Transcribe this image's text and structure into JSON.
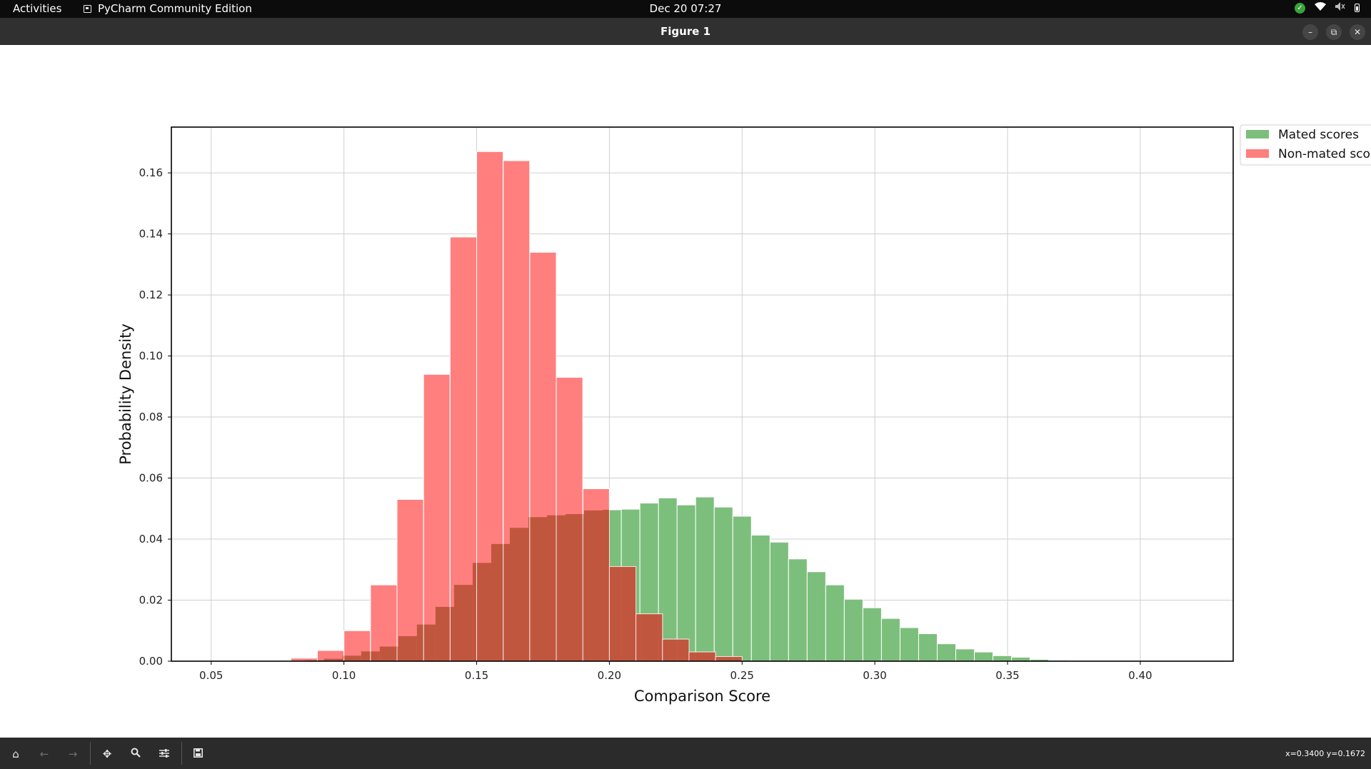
{
  "topbar": {
    "activities": "Activities",
    "app_name": "PyCharm Community Edition",
    "clock": "Dec 20  07:27",
    "icons": [
      "update-check-icon",
      "wifi-icon",
      "volume-muted-icon",
      "battery-icon"
    ]
  },
  "window": {
    "title": "Figure 1",
    "buttons": [
      "minimize-icon",
      "maximize-icon",
      "close-icon"
    ]
  },
  "toolbar": {
    "icons": [
      "home-icon",
      "back-icon",
      "forward-icon",
      "pan-icon",
      "zoom-icon",
      "configure-icon",
      "save-icon"
    ],
    "coords": "x=0.3400 y=0.1672"
  },
  "colors": {
    "mated": "#7cbf7c",
    "non_mated": "#ff7f7f",
    "overlap": "#c0563e",
    "bar_edge": "#ffffff"
  },
  "chart_data": {
    "type": "bar",
    "title": "",
    "xlabel": "Comparison Score",
    "ylabel": "Probability Density",
    "xlim": [
      0.035,
      0.435
    ],
    "ylim": [
      0.0,
      0.175
    ],
    "xticks": [
      0.05,
      0.1,
      0.15,
      0.2,
      0.25,
      0.3,
      0.35,
      0.4
    ],
    "xtick_labels": [
      "0.05",
      "0.10",
      "0.15",
      "0.20",
      "0.25",
      "0.30",
      "0.35",
      "0.40"
    ],
    "yticks": [
      0.0,
      0.02,
      0.04,
      0.06,
      0.08,
      0.1,
      0.12,
      0.14,
      0.16
    ],
    "ytick_labels": [
      "0.00",
      "0.02",
      "0.04",
      "0.06",
      "0.08",
      "0.10",
      "0.12",
      "0.14",
      "0.16"
    ],
    "grid": true,
    "legend": {
      "placement": "outside-top-right",
      "entries": [
        "Mated scores",
        "Non-mated scor"
      ]
    },
    "series": [
      {
        "name": "Mated scores",
        "bin_width": 0.007,
        "bins": [
          [
            0.089,
            0.0003
          ],
          [
            0.096,
            0.0008
          ],
          [
            0.103,
            0.0018
          ],
          [
            0.11,
            0.0032
          ],
          [
            0.117,
            0.0048
          ],
          [
            0.124,
            0.0082
          ],
          [
            0.131,
            0.012
          ],
          [
            0.138,
            0.0178
          ],
          [
            0.145,
            0.025
          ],
          [
            0.152,
            0.0322
          ],
          [
            0.159,
            0.0384
          ],
          [
            0.166,
            0.0437
          ],
          [
            0.173,
            0.0472
          ],
          [
            0.18,
            0.0478
          ],
          [
            0.187,
            0.0482
          ],
          [
            0.194,
            0.0494
          ],
          [
            0.201,
            0.0496
          ],
          [
            0.208,
            0.0498
          ],
          [
            0.215,
            0.0518
          ],
          [
            0.222,
            0.0535
          ],
          [
            0.229,
            0.0512
          ],
          [
            0.236,
            0.0538
          ],
          [
            0.243,
            0.0505
          ],
          [
            0.25,
            0.0475
          ],
          [
            0.257,
            0.0413
          ],
          [
            0.264,
            0.039
          ],
          [
            0.271,
            0.0335
          ],
          [
            0.278,
            0.0293
          ],
          [
            0.285,
            0.025
          ],
          [
            0.292,
            0.0203
          ],
          [
            0.299,
            0.0175
          ],
          [
            0.306,
            0.014
          ],
          [
            0.313,
            0.011
          ],
          [
            0.32,
            0.009
          ],
          [
            0.327,
            0.0057
          ],
          [
            0.334,
            0.004
          ],
          [
            0.341,
            0.003
          ],
          [
            0.348,
            0.0018
          ],
          [
            0.355,
            0.0013
          ],
          [
            0.362,
            0.0006
          ],
          [
            0.369,
            0.0003
          ],
          [
            0.376,
            0.0001
          ]
        ]
      },
      {
        "name": "Non-mated scor",
        "bin_width": 0.01,
        "bins": [
          [
            0.085,
            0.001
          ],
          [
            0.095,
            0.0035
          ],
          [
            0.105,
            0.01
          ],
          [
            0.115,
            0.025
          ],
          [
            0.125,
            0.053
          ],
          [
            0.135,
            0.094
          ],
          [
            0.145,
            0.139
          ],
          [
            0.155,
            0.167
          ],
          [
            0.165,
            0.164
          ],
          [
            0.175,
            0.134
          ],
          [
            0.185,
            0.093
          ],
          [
            0.195,
            0.0565
          ],
          [
            0.205,
            0.031
          ],
          [
            0.215,
            0.0155
          ],
          [
            0.225,
            0.0072
          ],
          [
            0.235,
            0.003
          ],
          [
            0.245,
            0.0015
          ]
        ]
      }
    ]
  }
}
